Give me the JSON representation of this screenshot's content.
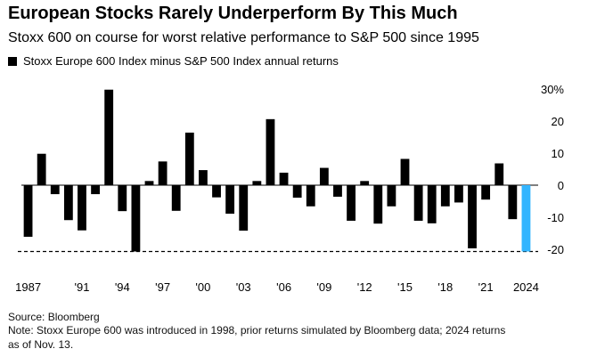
{
  "header": {
    "title": "European Stocks Rarely Underperform By This Much",
    "subtitle": "Stoxx 600 on course for worst relative performance to S&P 500 since 1995"
  },
  "footer": {
    "source": "Source: Bloomberg",
    "note_line1": "Note: Stoxx Europe 600 was introduced in 1998, prior returns simulated by Bloomberg data; 2024 returns",
    "note_line2": "as of Nov. 13."
  },
  "colors": {
    "bar": "#000000",
    "highlight": "#33b5ff",
    "axis": "#000000"
  },
  "chart_data": {
    "type": "bar",
    "title": "European Stocks Rarely Underperform By This Much",
    "subtitle": "Stoxx 600 on course for worst relative performance to S&P 500 since 1995",
    "legend": [
      "Stoxx Europe 600 Index minus S&P 500 Index annual returns"
    ],
    "legend_position": "top-left",
    "xlabel": "",
    "ylabel": "",
    "ylim": [
      -25,
      30
    ],
    "y_ticks": [
      30,
      20,
      10,
      0,
      -10,
      -20
    ],
    "y_tick_labels": [
      "30%",
      "20",
      "10",
      "0",
      "-10",
      "-20"
    ],
    "reference_line": -20.7,
    "categories": [
      "1987",
      "1988",
      "1989",
      "1990",
      "1991",
      "1992",
      "1993",
      "1994",
      "1995",
      "1996",
      "1997",
      "1998",
      "1999",
      "2000",
      "2001",
      "2002",
      "2003",
      "2004",
      "2005",
      "2006",
      "2007",
      "2008",
      "2009",
      "2010",
      "2011",
      "2012",
      "2013",
      "2014",
      "2015",
      "2016",
      "2017",
      "2018",
      "2019",
      "2020",
      "2021",
      "2022",
      "2023",
      "2024"
    ],
    "values": [
      -16.1,
      9.8,
      -2.8,
      -10.9,
      -14.1,
      -2.8,
      29.8,
      -8.1,
      -20.7,
      1.3,
      7.4,
      -8.0,
      16.4,
      4.7,
      -3.8,
      -8.9,
      -14.2,
      1.3,
      20.6,
      3.9,
      -3.9,
      -6.6,
      5.4,
      -3.6,
      -11.1,
      1.3,
      -12.0,
      -6.6,
      8.2,
      -11.1,
      -11.9,
      -6.6,
      -5.4,
      -19.7,
      -4.5,
      6.8,
      -10.6,
      -20.7
    ],
    "highlight_category": "2024",
    "x_tick_labels": [
      {
        "category": "1987",
        "label": "1987"
      },
      {
        "category": "1991",
        "label": "'91"
      },
      {
        "category": "1994",
        "label": "'94"
      },
      {
        "category": "1997",
        "label": "'97"
      },
      {
        "category": "2000",
        "label": "'00"
      },
      {
        "category": "2003",
        "label": "'03"
      },
      {
        "category": "2006",
        "label": "'06"
      },
      {
        "category": "2009",
        "label": "'09"
      },
      {
        "category": "2012",
        "label": "'12"
      },
      {
        "category": "2015",
        "label": "'15"
      },
      {
        "category": "2018",
        "label": "'18"
      },
      {
        "category": "2021",
        "label": "'21"
      },
      {
        "category": "2024",
        "label": "2024"
      }
    ]
  }
}
